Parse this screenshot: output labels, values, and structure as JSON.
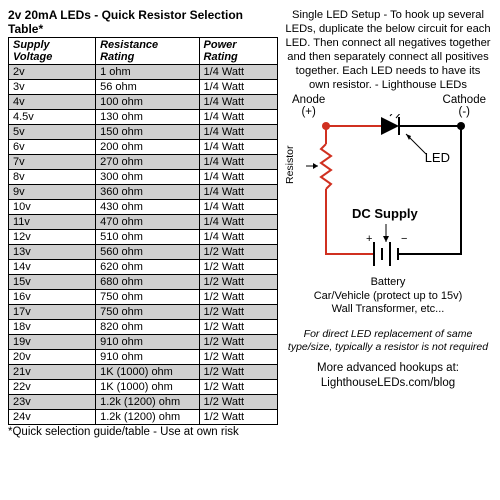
{
  "table": {
    "title": "2v 20mA LEDs - Quick Resistor Selection Table*",
    "columns": [
      "Supply Voltage",
      "Resistance Rating",
      "Power Rating"
    ],
    "rows": [
      [
        "2v",
        "1 ohm",
        "1/4 Watt"
      ],
      [
        "3v",
        "56 ohm",
        "1/4 Watt"
      ],
      [
        "4v",
        "100 ohm",
        "1/4 Watt"
      ],
      [
        "4.5v",
        "130 ohm",
        "1/4 Watt"
      ],
      [
        "5v",
        "150 ohm",
        "1/4 Watt"
      ],
      [
        "6v",
        "200 ohm",
        "1/4 Watt"
      ],
      [
        "7v",
        "270 ohm",
        "1/4 Watt"
      ],
      [
        "8v",
        "300 ohm",
        "1/4 Watt"
      ],
      [
        "9v",
        "360 ohm",
        "1/4 Watt"
      ],
      [
        "10v",
        "430 ohm",
        "1/4 Watt"
      ],
      [
        "11v",
        "470 ohm",
        "1/4 Watt"
      ],
      [
        "12v",
        "510 ohm",
        "1/4 Watt"
      ],
      [
        "13v",
        "560 ohm",
        "1/2 Watt"
      ],
      [
        "14v",
        "620 ohm",
        "1/2 Watt"
      ],
      [
        "15v",
        "680 ohm",
        "1/2 Watt"
      ],
      [
        "16v",
        "750 ohm",
        "1/2 Watt"
      ],
      [
        "17v",
        "750 ohm",
        "1/2 Watt"
      ],
      [
        "18v",
        "820 ohm",
        "1/2 Watt"
      ],
      [
        "19v",
        "910 ohm",
        "1/2 Watt"
      ],
      [
        "20v",
        "910 ohm",
        "1/2 Watt"
      ],
      [
        "21v",
        "1K (1000) ohm",
        "1/2 Watt"
      ],
      [
        "22v",
        "1K (1000) ohm",
        "1/2 Watt"
      ],
      [
        "23v",
        "1.2k (1200) ohm",
        "1/2 Watt"
      ],
      [
        "24v",
        "1.2k (1200) ohm",
        "1/2 Watt"
      ]
    ],
    "footnote": "*Quick selection guide/table - Use at own risk"
  },
  "right": {
    "intro": "Single LED Setup - To hook up several LEDs, duplicate the below circuit for each LED. Then connect all negatives together and then separately connect all positives together. Each LED needs to have its own resistor. - Lighthouse LEDs",
    "anode": "Anode",
    "anode_sign": "(+)",
    "cathode": "Cathode",
    "cathode_sign": "(-)",
    "led": "LED",
    "resistor": "Resistor",
    "dc": "DC Supply",
    "battery1": "Battery",
    "battery2": "Car/Vehicle (protect up to 15v)",
    "battery3": "Wall Transformer, etc...",
    "notice": "For direct LED replacement of same type/size, typically a resistor is not required",
    "more1": "More advanced hookups at:",
    "more2": "LighthouseLEDs.com/blog"
  },
  "colors": {
    "wire_pos": "#d03020",
    "wire_neg": "#000000",
    "node": "#d03020"
  }
}
